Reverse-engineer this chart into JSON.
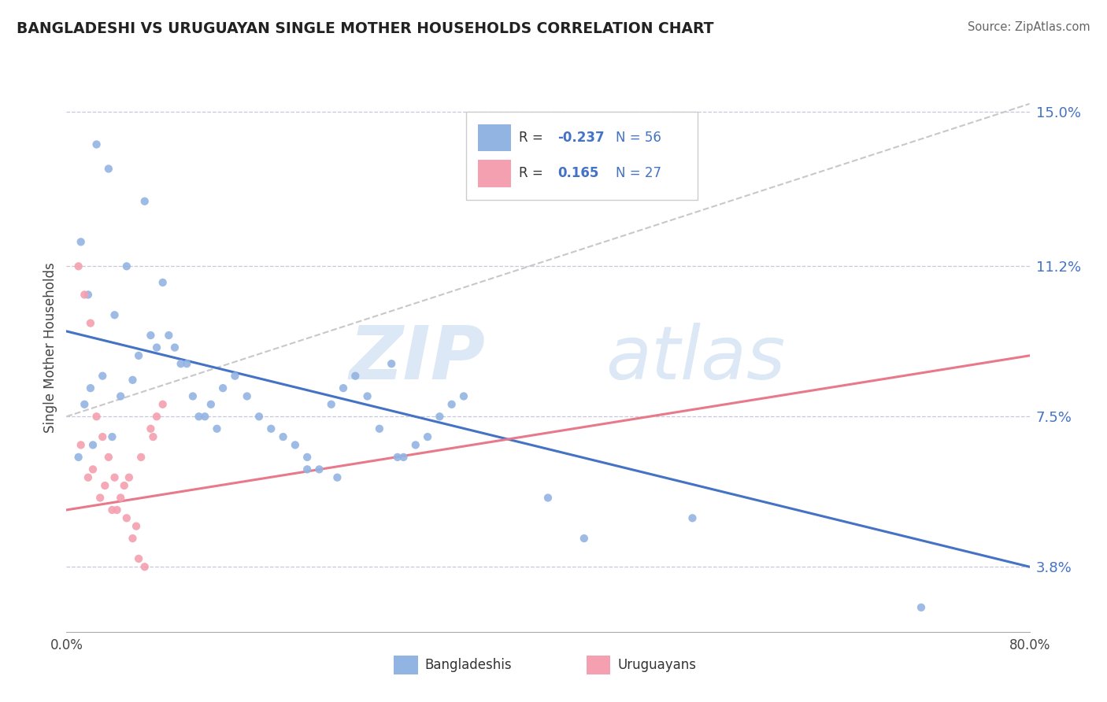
{
  "title": "BANGLADESHI VS URUGUAYAN SINGLE MOTHER HOUSEHOLDS CORRELATION CHART",
  "source": "Source: ZipAtlas.com",
  "ylabel": "Single Mother Households",
  "yticks": [
    3.8,
    7.5,
    11.2,
    15.0
  ],
  "ytick_labels": [
    "3.8%",
    "7.5%",
    "11.2%",
    "15.0%"
  ],
  "xmin": 0.0,
  "xmax": 80.0,
  "ymin": 2.2,
  "ymax": 16.2,
  "legend_r_blue": "-0.237",
  "legend_n_blue": "56",
  "legend_r_pink": "0.165",
  "legend_n_pink": "27",
  "blue_color": "#92b4e3",
  "pink_color": "#f4a0b0",
  "blue_line_color": "#4472c4",
  "pink_line_color": "#e8798a",
  "dashed_line_color": "#c8c8c8",
  "blue_line_y0": 9.6,
  "blue_line_y1": 3.8,
  "pink_line_y0": 5.2,
  "pink_line_y1": 9.0,
  "dash_line_y0": 7.5,
  "dash_line_y1": 15.2,
  "blue_scatter_x": [
    2.5,
    3.5,
    1.2,
    1.8,
    6.5,
    5.0,
    8.0,
    4.0,
    7.0,
    9.0,
    10.0,
    3.0,
    2.0,
    1.5,
    4.5,
    5.5,
    6.0,
    7.5,
    8.5,
    9.5,
    10.5,
    11.5,
    12.0,
    13.0,
    14.0,
    15.0,
    16.0,
    17.0,
    18.0,
    19.0,
    20.0,
    21.0,
    22.0,
    23.0,
    24.0,
    25.0,
    26.0,
    27.0,
    28.0,
    29.0,
    30.0,
    31.0,
    32.0,
    33.0,
    1.0,
    2.2,
    3.8,
    11.0,
    12.5,
    22.5,
    27.5,
    40.0,
    52.0,
    43.0,
    71.0,
    20.0
  ],
  "blue_scatter_y": [
    14.2,
    13.6,
    11.8,
    10.5,
    12.8,
    11.2,
    10.8,
    10.0,
    9.5,
    9.2,
    8.8,
    8.5,
    8.2,
    7.8,
    8.0,
    8.4,
    9.0,
    9.2,
    9.5,
    8.8,
    8.0,
    7.5,
    7.8,
    8.2,
    8.5,
    8.0,
    7.5,
    7.2,
    7.0,
    6.8,
    6.5,
    6.2,
    7.8,
    8.2,
    8.5,
    8.0,
    7.2,
    8.8,
    6.5,
    6.8,
    7.0,
    7.5,
    7.8,
    8.0,
    6.5,
    6.8,
    7.0,
    7.5,
    7.2,
    6.0,
    6.5,
    5.5,
    5.0,
    4.5,
    2.8,
    6.2
  ],
  "pink_scatter_x": [
    1.0,
    1.5,
    2.0,
    2.5,
    3.0,
    3.5,
    4.0,
    4.5,
    5.0,
    5.5,
    6.0,
    6.5,
    7.0,
    7.5,
    8.0,
    1.2,
    2.2,
    3.2,
    4.2,
    5.2,
    6.2,
    7.2,
    1.8,
    2.8,
    3.8,
    5.8,
    4.8
  ],
  "pink_scatter_y": [
    11.2,
    10.5,
    9.8,
    7.5,
    7.0,
    6.5,
    6.0,
    5.5,
    5.0,
    4.5,
    4.0,
    3.8,
    7.2,
    7.5,
    7.8,
    6.8,
    6.2,
    5.8,
    5.2,
    6.0,
    6.5,
    7.0,
    6.0,
    5.5,
    5.2,
    4.8,
    5.8
  ]
}
